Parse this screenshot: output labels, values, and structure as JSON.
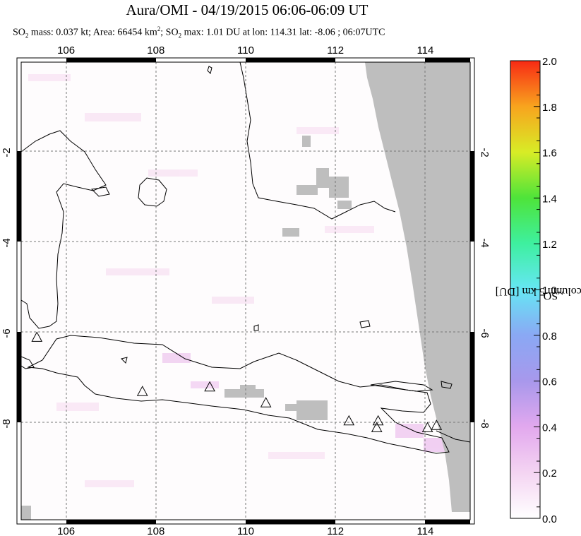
{
  "title": "Aura/OMI - 04/19/2015 06:06-06:09 UT",
  "subtitle": {
    "so2_mass": "SO",
    "so2_sub": "2",
    "mass_text": " mass: 0.037 kt; Area: 66454 km",
    "area_sup": "2",
    "max_prefix": "; SO",
    "max_sub": "2",
    "max_text": " max: 1.01 DU at lon: 114.31 lat: -8.06 ; 06:07UTC"
  },
  "map": {
    "lon_range": [
      105,
      115
    ],
    "lat_range": [
      -10,
      0
    ],
    "lon_ticks": [
      106,
      108,
      110,
      112,
      114
    ],
    "lon_tick_labels": [
      "106",
      "108",
      "110",
      "112",
      "114"
    ],
    "lat_ticks": [
      -2,
      -4,
      -6,
      -8
    ],
    "lat_tick_labels": [
      "-2",
      "-4",
      "-6",
      "-8"
    ],
    "grid": "dashed",
    "no_data_color": "#bebebe",
    "volcanoes": [
      {
        "lon": 105.35,
        "lat": -6.1
      },
      {
        "lon": 107.7,
        "lat": -7.3
      },
      {
        "lon": 109.2,
        "lat": -7.2
      },
      {
        "lon": 110.45,
        "lat": -7.55
      },
      {
        "lon": 112.3,
        "lat": -7.95
      },
      {
        "lon": 112.95,
        "lat": -7.95
      },
      {
        "lon": 112.92,
        "lat": -8.1
      },
      {
        "lon": 114.05,
        "lat": -8.1
      },
      {
        "lon": 114.25,
        "lat": -8.05
      }
    ]
  },
  "colorbar": {
    "label": "SO2 PCA column 5 km [DU]",
    "label_main": "SO",
    "label_sub": "2",
    "label_rest": " PCA column 5 km [DU]",
    "min": 0.0,
    "max": 2.0,
    "tick_labels": [
      "0.0",
      "0.2",
      "0.4",
      "0.6",
      "0.8",
      "1.0",
      "1.2",
      "1.4",
      "1.6",
      "1.8",
      "2.0"
    ]
  }
}
